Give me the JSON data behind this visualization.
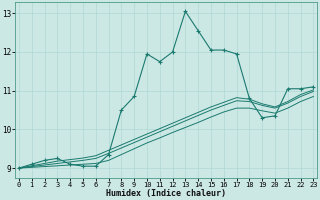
{
  "xlabel": "Humidex (Indice chaleur)",
  "background_color": "#cce8e5",
  "grid_color": "#b0d8d4",
  "line_color": "#1a7a6e",
  "xlim": [
    -0.3,
    23.3
  ],
  "ylim": [
    8.75,
    13.3
  ],
  "xticks": [
    0,
    1,
    2,
    3,
    4,
    5,
    6,
    7,
    8,
    9,
    10,
    11,
    12,
    13,
    14,
    15,
    16,
    17,
    18,
    19,
    20,
    21,
    22,
    23
  ],
  "yticks": [
    9,
    10,
    11,
    12,
    13
  ],
  "main_y": [
    9.0,
    9.1,
    9.2,
    9.25,
    9.1,
    9.05,
    9.05,
    9.35,
    10.5,
    10.85,
    11.95,
    11.75,
    12.0,
    13.05,
    12.55,
    12.05,
    12.05,
    11.95,
    10.8,
    10.3,
    10.35,
    11.05,
    11.05,
    11.1
  ],
  "line2_y": [
    9.0,
    9.02,
    9.04,
    9.06,
    9.08,
    9.1,
    9.12,
    9.2,
    9.35,
    9.5,
    9.65,
    9.78,
    9.92,
    10.05,
    10.18,
    10.32,
    10.45,
    10.55,
    10.55,
    10.48,
    10.42,
    10.55,
    10.72,
    10.85
  ],
  "line3_y": [
    9.0,
    9.04,
    9.08,
    9.12,
    9.16,
    9.2,
    9.25,
    9.38,
    9.52,
    9.66,
    9.8,
    9.94,
    10.08,
    10.22,
    10.36,
    10.5,
    10.62,
    10.74,
    10.72,
    10.62,
    10.55,
    10.68,
    10.85,
    10.98
  ],
  "line4_y": [
    9.0,
    9.06,
    9.12,
    9.18,
    9.22,
    9.26,
    9.32,
    9.46,
    9.6,
    9.74,
    9.88,
    10.02,
    10.16,
    10.3,
    10.44,
    10.58,
    10.7,
    10.82,
    10.78,
    10.66,
    10.58,
    10.72,
    10.9,
    11.02
  ]
}
